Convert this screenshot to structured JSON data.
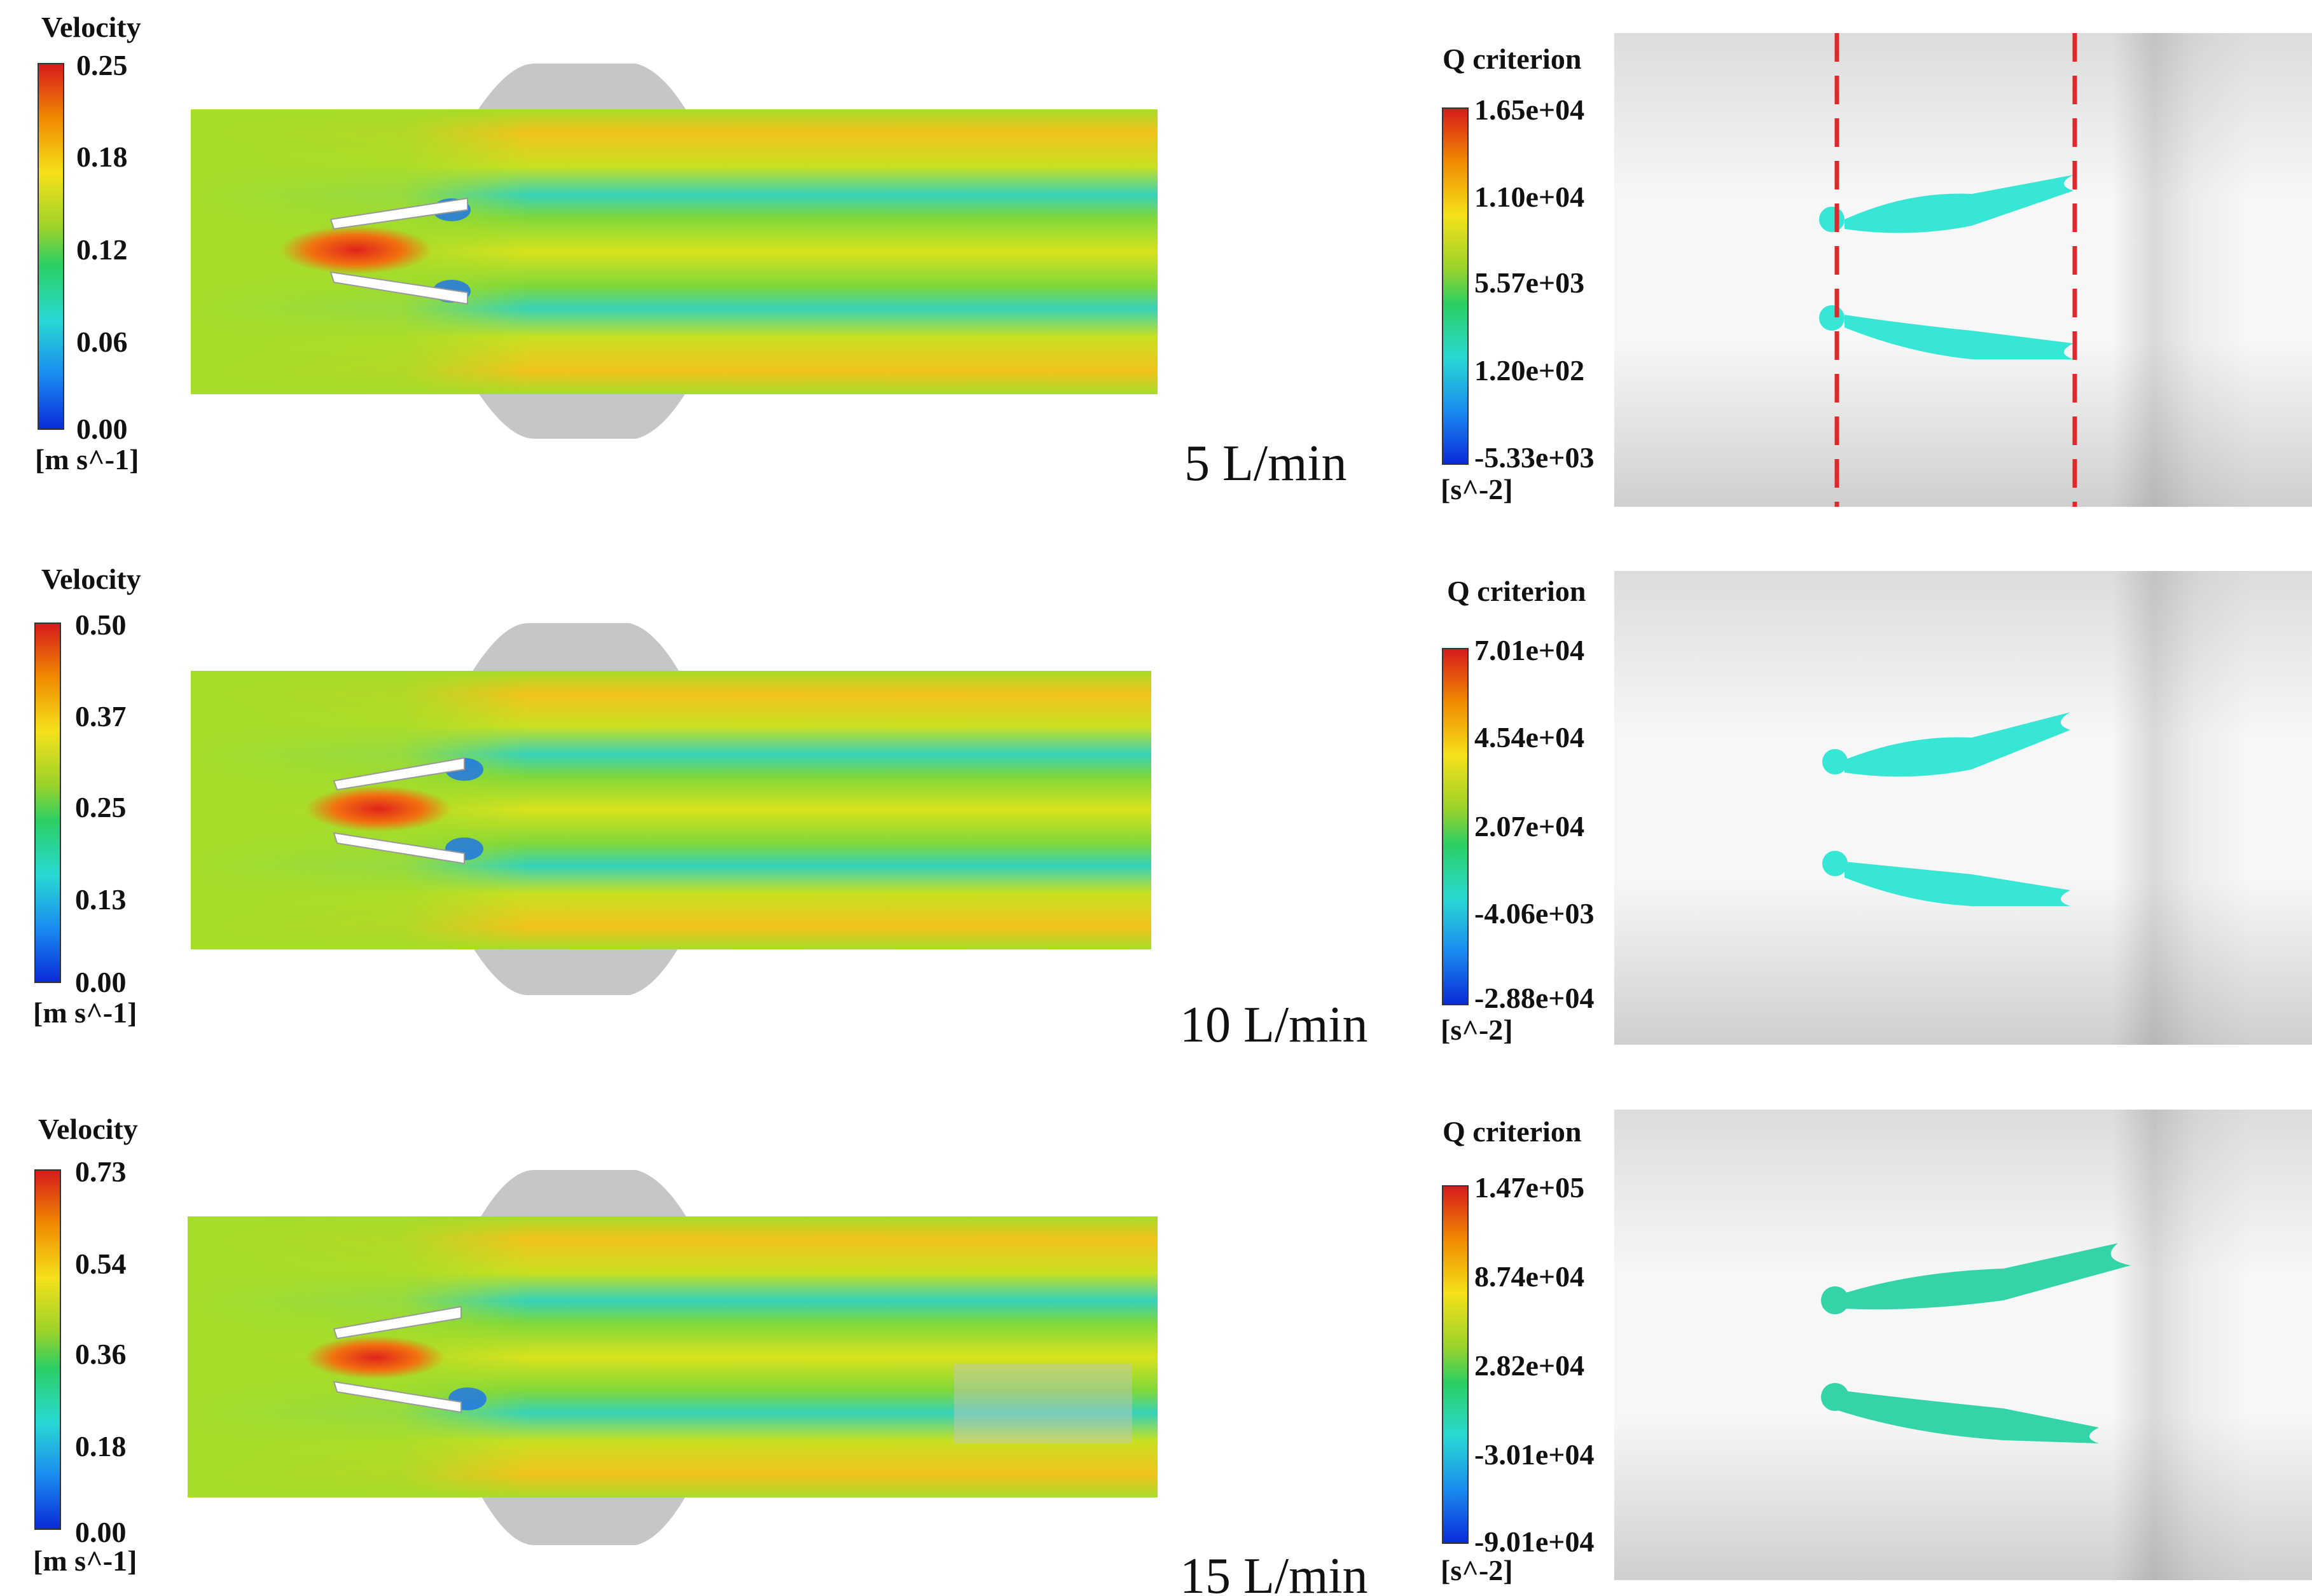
{
  "rows": [
    {
      "velocity_legend": {
        "title": "Velocity",
        "ticks": [
          "0.25",
          "0.18",
          "0.12",
          "0.06",
          "0.00"
        ],
        "unit": "[m s^-1]"
      },
      "flow_rate": "5 L/min",
      "q_legend": {
        "title": "Q criterion",
        "ticks": [
          "1.65e+04",
          "1.10e+04",
          "5.57e+03",
          "1.20e+02",
          "-5.33e+03"
        ],
        "unit": "[s^-2]"
      },
      "show_dashed_lines": true
    },
    {
      "velocity_legend": {
        "title": "Velocity",
        "ticks": [
          "0.50",
          "0.37",
          "0.25",
          "0.13",
          "0.00"
        ],
        "unit": "[m s^-1]"
      },
      "flow_rate": "10 L/min",
      "q_legend": {
        "title": "Q criterion",
        "ticks": [
          "7.01e+04",
          "4.54e+04",
          "2.07e+04",
          "-4.06e+03",
          "-2.88e+04"
        ],
        "unit": "[s^-2]"
      },
      "show_dashed_lines": false
    },
    {
      "velocity_legend": {
        "title": "Velocity",
        "ticks": [
          "0.73",
          "0.54",
          "0.36",
          "0.18",
          "0.00"
        ],
        "unit": "[m s^-1]"
      },
      "flow_rate": "15 L/min",
      "q_legend": {
        "title": "Q criterion",
        "ticks": [
          "1.47e+05",
          "8.74e+04",
          "2.82e+04",
          "-3.01e+04",
          "-9.01e+04"
        ],
        "unit": "[s^-2]"
      },
      "show_dashed_lines": false
    }
  ],
  "colors": {
    "colormap": [
      "#d7191c",
      "#f08a00",
      "#f5e11b",
      "#9bd22a",
      "#2bcf63",
      "#29d9d2",
      "#1a8cf0",
      "#0a2ad8"
    ],
    "dashed_line": "#e0272b",
    "vortex": "#38e6d6",
    "vortex_high_flow": "#34d4a8",
    "background_gray": "#e8e8e8"
  }
}
